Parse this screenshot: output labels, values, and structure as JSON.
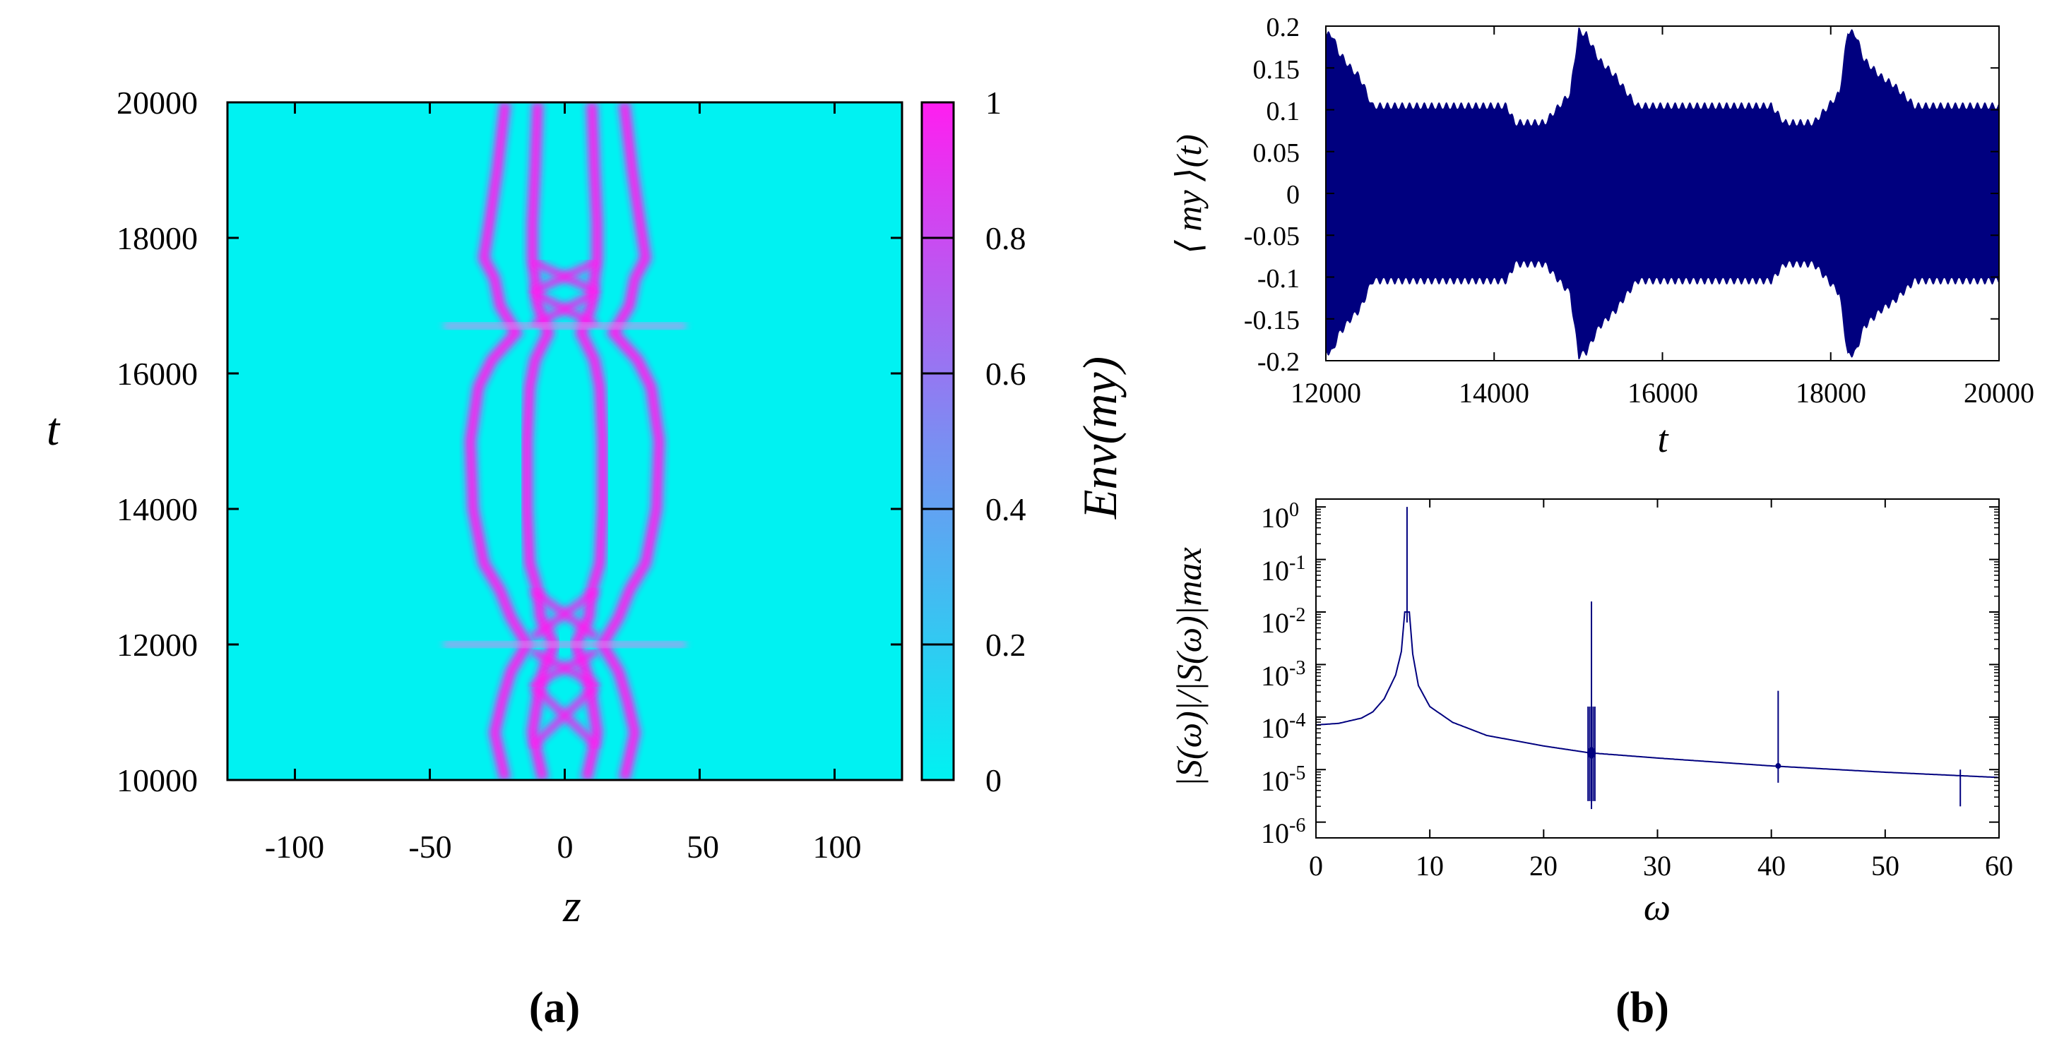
{
  "chart_data": [
    {
      "type": "heatmap",
      "panel_label": "(a)",
      "xlabel": "z",
      "ylabel": "t",
      "colorbar_label": "Env(my)",
      "xlim": [
        -125,
        125
      ],
      "ylim": [
        10000,
        20000
      ],
      "xticks": [
        -100,
        -50,
        0,
        50,
        100
      ],
      "yticks": [
        10000,
        12000,
        14000,
        16000,
        18000,
        20000
      ],
      "colorbar_range": [
        0,
        1
      ],
      "colorbar_ticks": [
        0,
        0.2,
        0.4,
        0.6,
        0.8,
        1
      ],
      "colors": {
        "low": "#00f2f2",
        "mid": "#8c7cf0",
        "high": "#ff1ef0"
      },
      "features": [
        {
          "name": "breathing filaments",
          "t_range": [
            10000,
            20000
          ],
          "z_range": [
            -30,
            30
          ]
        },
        {
          "name": "collision burst",
          "t": 12000
        },
        {
          "name": "collision burst",
          "t": 16700
        }
      ]
    },
    {
      "type": "line",
      "xlabel": "t",
      "ylabel": "⟨ my ⟩(t)",
      "xlim": [
        12000,
        20000
      ],
      "ylim": [
        -0.2,
        0.2
      ],
      "xticks": [
        12000,
        14000,
        16000,
        18000,
        20000
      ],
      "yticks": [
        -0.2,
        -0.15,
        -0.1,
        -0.05,
        0,
        0.05,
        0.1,
        0.15,
        0.2
      ],
      "line_color": "#00007f",
      "envelope": {
        "t": [
          12000,
          12080,
          12150,
          12300,
          12400,
          12450,
          12550,
          14150,
          14250,
          14600,
          14900,
          15000,
          15100,
          15250,
          15350,
          15450,
          15550,
          15700,
          17300,
          17450,
          17800,
          18100,
          18200,
          18300,
          18400,
          18500,
          18600,
          18750,
          18900,
          19000,
          20000
        ],
        "upper": [
          0.19,
          0.19,
          0.17,
          0.15,
          0.14,
          0.13,
          0.105,
          0.105,
          0.085,
          0.085,
          0.12,
          0.195,
          0.19,
          0.16,
          0.15,
          0.14,
          0.125,
          0.105,
          0.105,
          0.085,
          0.085,
          0.12,
          0.195,
          0.19,
          0.16,
          0.15,
          0.14,
          0.13,
          0.115,
          0.105,
          0.105
        ]
      }
    },
    {
      "type": "line",
      "panel_label": "(b)",
      "xlabel": "ω",
      "ylabel": "|S(ω)|/|S(ω)|max",
      "xlim": [
        0,
        60
      ],
      "ylim_log10": [
        -6.3,
        0.15
      ],
      "xticks": [
        0,
        10,
        20,
        30,
        40,
        50,
        60
      ],
      "yticks_log10": [
        0,
        -1,
        -2,
        -3,
        -4,
        -5,
        -6
      ],
      "line_color": "#00007f",
      "baseline": {
        "omega": [
          0,
          2,
          4,
          5,
          6,
          7,
          7.5,
          7.8,
          8.2,
          8.5,
          9,
          10,
          12,
          15,
          20,
          24,
          30,
          40,
          50,
          60
        ],
        "log10": [
          -4.15,
          -4.12,
          -4.02,
          -3.9,
          -3.65,
          -3.2,
          -2.75,
          -2.0,
          -2.0,
          -2.8,
          -3.4,
          -3.8,
          -4.1,
          -4.35,
          -4.55,
          -4.68,
          -4.78,
          -4.93,
          -5.05,
          -5.15
        ]
      },
      "peaks": [
        {
          "omega": 8.0,
          "top_log10": 0,
          "bottom_log10": -2.2
        },
        {
          "omega": 24.2,
          "top_log10": -1.8,
          "bottom_log10": -5.75
        },
        {
          "omega": 40.6,
          "top_log10": -3.5,
          "bottom_log10": -5.25
        },
        {
          "omega": 56.6,
          "top_log10": -5.0,
          "bottom_log10": -5.7
        }
      ]
    }
  ]
}
